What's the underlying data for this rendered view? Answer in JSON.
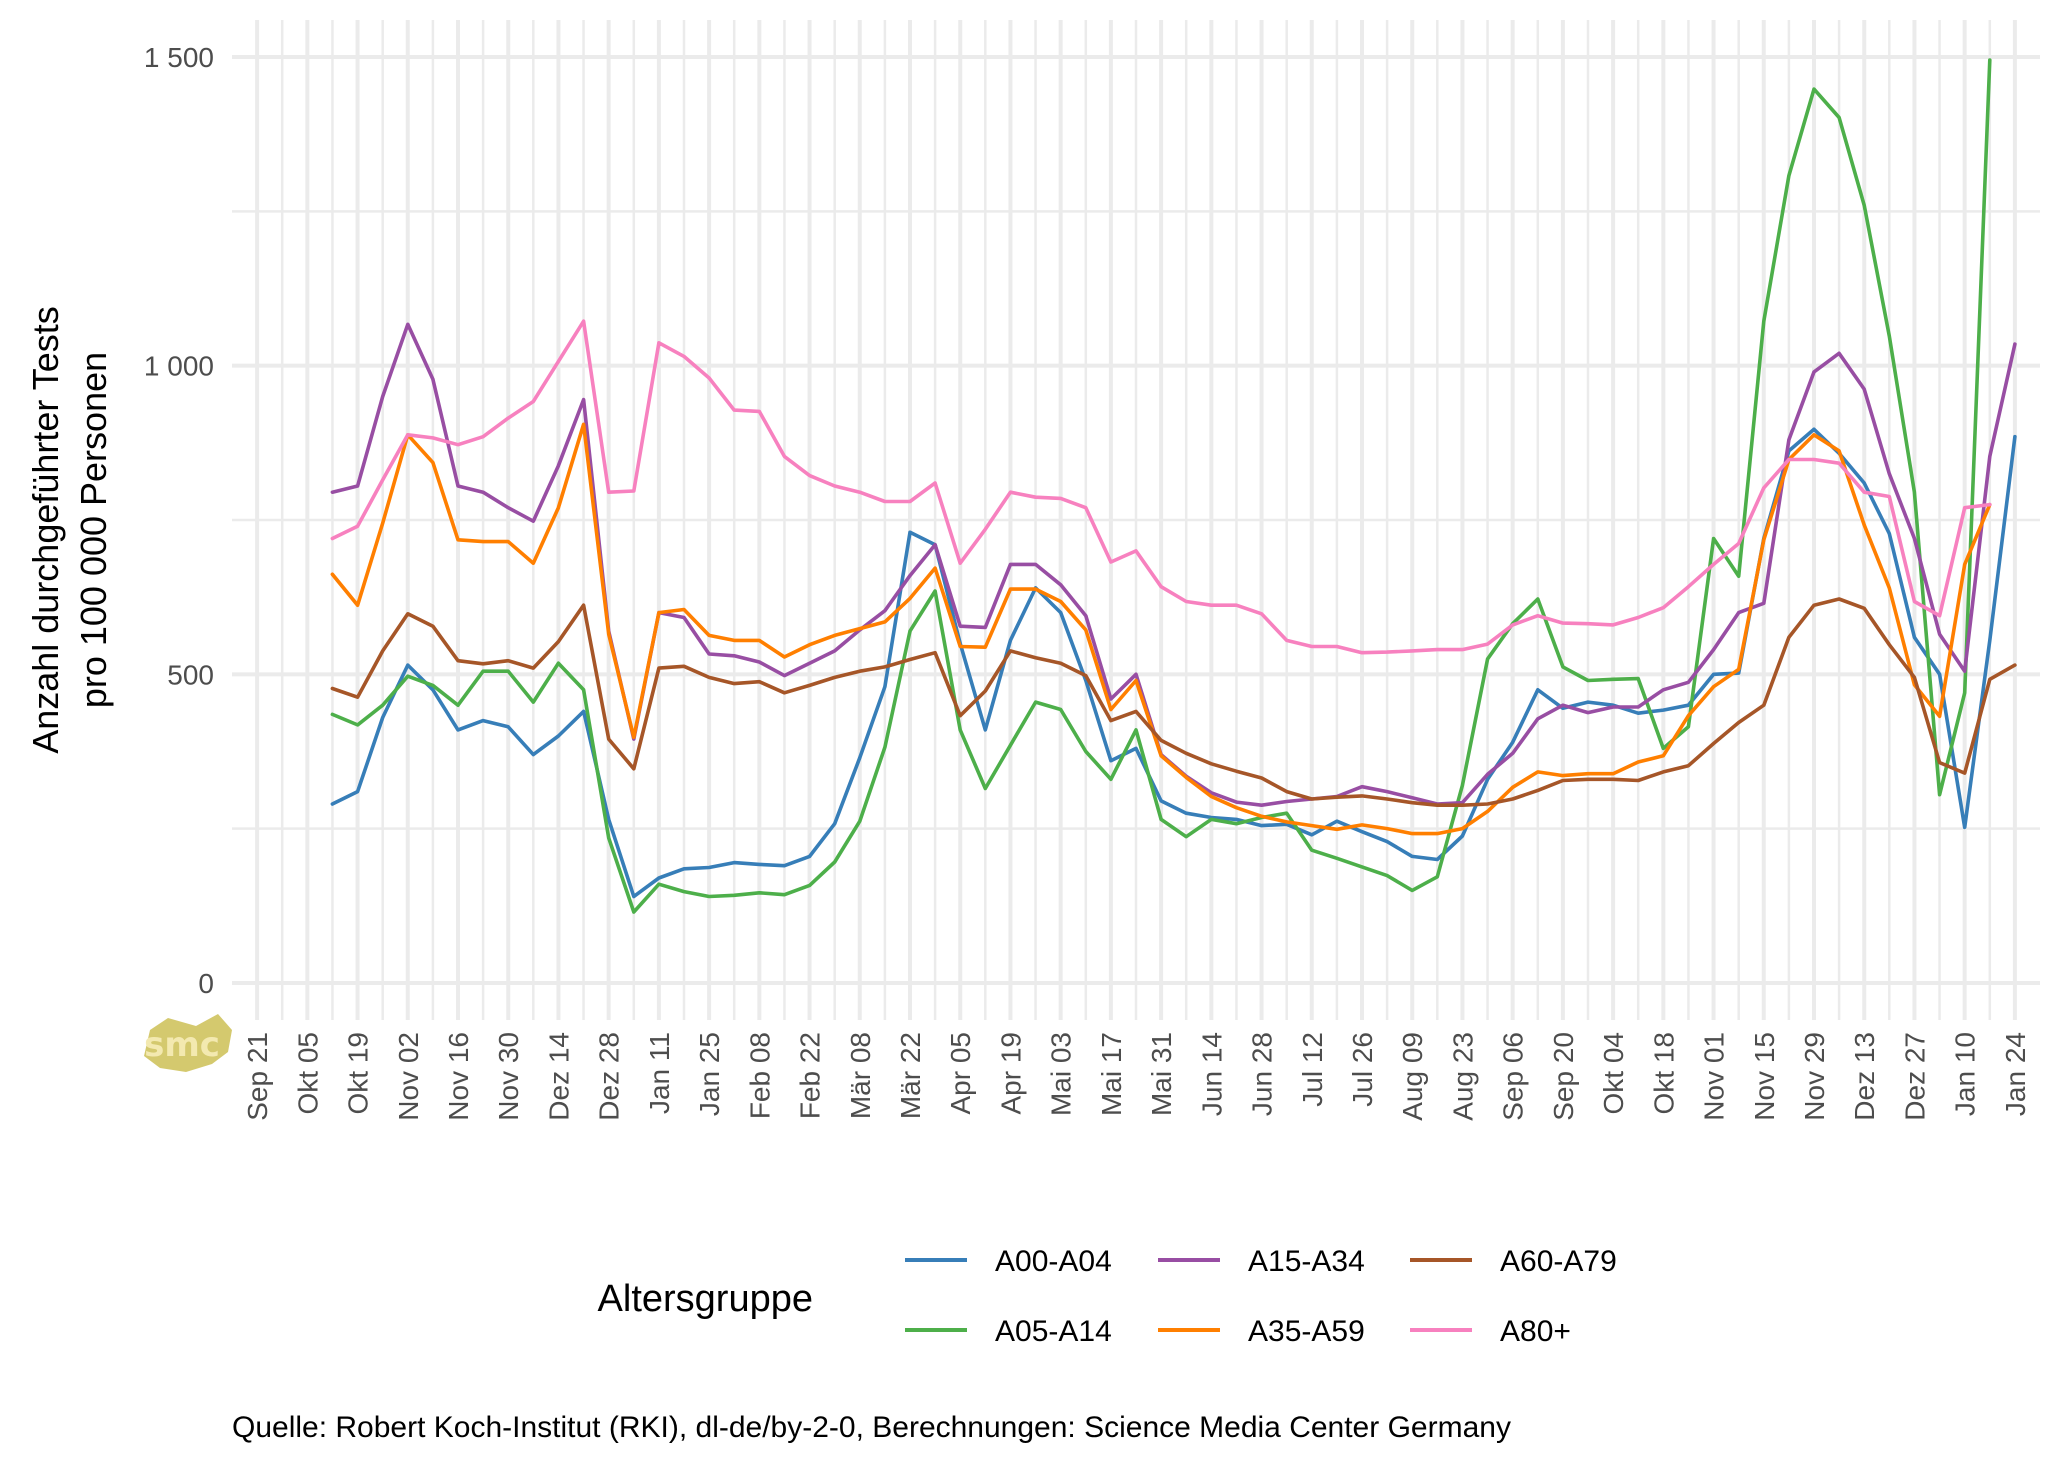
{
  "chart_data": {
    "type": "line",
    "ylabel_lines": [
      "Anzahl durchgeführter Tests",
      "pro 100 000 Personen"
    ],
    "xlabel": "",
    "ylim": [
      -60,
      1560
    ],
    "yticks": [
      0,
      500,
      1000,
      1500
    ],
    "ytick_labels": [
      "0",
      "500",
      "1 000",
      "1 500"
    ],
    "grid": true,
    "x_start_index": 0,
    "x_tick_labels": [
      "Sep 21",
      "Okt 05",
      "Okt 19",
      "Nov 02",
      "Nov 16",
      "Nov 30",
      "Dez 14",
      "Dez 28",
      "Jan 11",
      "Jan 25",
      "Feb 08",
      "Feb 22",
      "Mär 08",
      "Mär 22",
      "Apr 05",
      "Apr 19",
      "Mai 03",
      "Mai 17",
      "Mai 31",
      "Jun 14",
      "Jun 28",
      "Jul 12",
      "Jul 26",
      "Aug 09",
      "Aug 23",
      "Sep 06",
      "Sep 20",
      "Okt 04",
      "Okt 18",
      "Nov 01",
      "Nov 15",
      "Nov 29",
      "Dez 13",
      "Dez 27",
      "Jan 10",
      "Jan 24"
    ],
    "x_tick_weeks": [
      0,
      2,
      4,
      6,
      8,
      10,
      12,
      14,
      16,
      18,
      20,
      22,
      24,
      26,
      28,
      30,
      32,
      34,
      36,
      38,
      40,
      42,
      44,
      46,
      48,
      50,
      52,
      54,
      56,
      58,
      60,
      62,
      64,
      66,
      68,
      70
    ],
    "x_range_weeks": [
      -1,
      71
    ],
    "series_x_start_week": 3,
    "series": [
      {
        "name": "A00-A04",
        "color": "#377eb8",
        "values": [
          290,
          310,
          430,
          515,
          475,
          410,
          425,
          415,
          370,
          400,
          440,
          265,
          140,
          170,
          185,
          187,
          195,
          192,
          190,
          205,
          258,
          365,
          480,
          730,
          710,
          550,
          410,
          555,
          640,
          600,
          490,
          360,
          380,
          295,
          275,
          268,
          265,
          255,
          257,
          240,
          262,
          245,
          229,
          205,
          200,
          238,
          330,
          390,
          475,
          445,
          455,
          450,
          437,
          442,
          450,
          500,
          502,
          720,
          862,
          897,
          858,
          810,
          728,
          560,
          500,
          252,
          555,
          885
        ]
      },
      {
        "name": "A05-A14",
        "color": "#4daf4a",
        "values": [
          435,
          418,
          450,
          497,
          482,
          450,
          505,
          505,
          455,
          518,
          475,
          235,
          115,
          160,
          148,
          140,
          142,
          146,
          143,
          158,
          196,
          262,
          382,
          570,
          635,
          410,
          315,
          385,
          455,
          443,
          375,
          330,
          410,
          265,
          237,
          265,
          258,
          268,
          275,
          215,
          202,
          188,
          174,
          150,
          172,
          320,
          525,
          582,
          622,
          512,
          490,
          492,
          493,
          380,
          415,
          720,
          659,
          1072,
          1308,
          1448,
          1402,
          1260,
          1048,
          795,
          305,
          470,
          1495
        ]
      },
      {
        "name": "A15-A34",
        "color": "#984ea3",
        "values": [
          795,
          805,
          950,
          1067,
          978,
          805,
          795,
          770,
          748,
          838,
          945,
          570,
          395,
          600,
          592,
          533,
          530,
          520,
          498,
          518,
          538,
          572,
          603,
          660,
          710,
          578,
          576,
          678,
          678,
          645,
          595,
          460,
          500,
          370,
          335,
          308,
          293,
          288,
          294,
          298,
          302,
          318,
          310,
          300,
          290,
          292,
          338,
          372,
          428,
          450,
          438,
          447,
          447,
          475,
          487,
          540,
          600,
          615,
          880,
          990,
          1020,
          962,
          825,
          720,
          565,
          505,
          853,
          1035
        ]
      },
      {
        "name": "A35-A59",
        "color": "#ff7f00",
        "values": [
          662,
          612,
          745,
          888,
          843,
          718,
          715,
          715,
          680,
          770,
          905,
          565,
          398,
          600,
          605,
          563,
          555,
          555,
          528,
          548,
          563,
          574,
          585,
          623,
          672,
          545,
          544,
          638,
          638,
          618,
          572,
          443,
          490,
          368,
          333,
          302,
          284,
          270,
          261,
          255,
          249,
          256,
          250,
          242,
          242,
          250,
          278,
          317,
          342,
          336,
          339,
          339,
          358,
          368,
          433,
          480,
          508,
          718,
          848,
          888,
          862,
          742,
          640,
          483,
          432,
          678,
          775
        ]
      },
      {
        "name": "A60-A79",
        "color": "#a65628",
        "values": [
          477,
          463,
          538,
          598,
          578,
          522,
          517,
          522,
          510,
          553,
          612,
          395,
          347,
          510,
          513,
          495,
          485,
          488,
          470,
          482,
          495,
          505,
          512,
          524,
          535,
          433,
          473,
          538,
          527,
          518,
          498,
          425,
          440,
          393,
          372,
          355,
          343,
          332,
          310,
          298,
          301,
          303,
          298,
          292,
          288,
          288,
          290,
          298,
          312,
          328,
          330,
          330,
          328,
          342,
          352,
          388,
          422,
          450,
          560,
          612,
          622,
          607,
          548,
          495,
          357,
          340,
          492,
          515
        ]
      },
      {
        "name": "A80+",
        "color": "#f781bf",
        "values": [
          720,
          740,
          815,
          888,
          883,
          872,
          885,
          915,
          942,
          1007,
          1072,
          795,
          797,
          1037,
          1015,
          980,
          928,
          926,
          853,
          822,
          805,
          795,
          780,
          780,
          810,
          680,
          735,
          795,
          787,
          785,
          770,
          682,
          700,
          642,
          618,
          612,
          612,
          598,
          555,
          545,
          545,
          535,
          536,
          538,
          540,
          540,
          549,
          580,
          595,
          583,
          582,
          580,
          592,
          608,
          642,
          678,
          712,
          802,
          848,
          848,
          842,
          795,
          788,
          618,
          595,
          770,
          775
        ]
      }
    ],
    "legend": {
      "title": "Altersgruppe",
      "placement": "bottom",
      "entries": [
        "A00-A04",
        "A15-A34",
        "A60-A79",
        "A05-A14",
        "A35-A59",
        "A80+"
      ]
    },
    "caption": "Quelle: Robert Koch-Institut (RKI), dl-de/by-2-0, Berechnungen: Science Media Center Germany"
  },
  "logo": {
    "text": "smc",
    "color": "#cdbf55"
  },
  "colors": {
    "grid": "#ebebeb",
    "tick_text": "#4d4d4d"
  }
}
